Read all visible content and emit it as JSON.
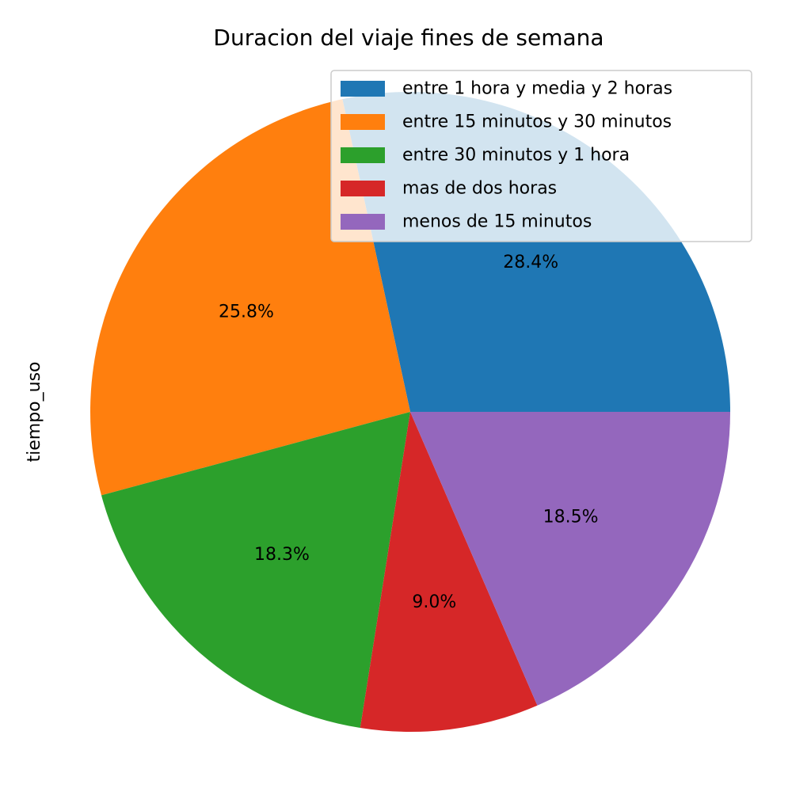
{
  "chart_data": {
    "type": "pie",
    "title": "Duracion del viaje fines de semana",
    "ylabel": "tiempo_uso",
    "legend_position": "upper-right",
    "start_angle_deg": 0,
    "direction": "counterclockwise",
    "slices": [
      {
        "label": "entre 1 hora y media y 2 horas",
        "value": 28.4,
        "pct_label": "28.4%",
        "color": "#1f77b4"
      },
      {
        "label": "entre 15 minutos y 30 minutos",
        "value": 25.8,
        "pct_label": "25.8%",
        "color": "#ff7f0e"
      },
      {
        "label": "entre 30 minutos y 1 hora",
        "value": 18.3,
        "pct_label": "18.3%",
        "color": "#2ca02c"
      },
      {
        "label": "mas de dos horas",
        "value": 9.0,
        "pct_label": "9.0%",
        "color": "#d62728"
      },
      {
        "label": "menos de 15 minutos",
        "value": 18.5,
        "pct_label": "18.5%",
        "color": "#9467bd"
      }
    ]
  }
}
